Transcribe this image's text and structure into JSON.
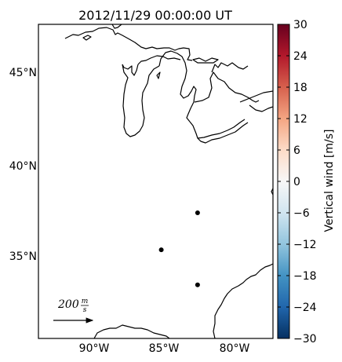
{
  "map": {
    "title": "2012/11/29 00:00:00 UT",
    "lat_labels": [
      "45°N",
      "40°N",
      "35°N"
    ],
    "lon_labels": [
      "90°W",
      "85°W",
      "80°W"
    ],
    "extent": {
      "lon_min": -94.3,
      "lon_max": -77.5,
      "lat_min": 30.5,
      "lat_max": 47.5
    },
    "coastline_color": "#000000",
    "stations": [
      {
        "lon": -82.9,
        "lat": 37.3
      },
      {
        "lon": -85.5,
        "lat": 35.3
      },
      {
        "lon": -82.9,
        "lat": 33.4
      }
    ],
    "reference_arrow": {
      "label_value": "200",
      "label_num": "m",
      "label_den": "s"
    }
  },
  "colorbar": {
    "label": "Vertical wind [m/s]",
    "ticks": [
      "30",
      "24",
      "18",
      "12",
      "6",
      "0",
      "−6",
      "−12",
      "−18",
      "−24",
      "−30"
    ],
    "range": [
      -30,
      30
    ],
    "colormap": "RdBu_r",
    "colors": [
      "#67001f",
      "#b2182b",
      "#d6604d",
      "#f4a582",
      "#fddbc7",
      "#f7f7f7",
      "#d1e5f0",
      "#92c5de",
      "#4393c3",
      "#2166ac",
      "#053061"
    ]
  }
}
